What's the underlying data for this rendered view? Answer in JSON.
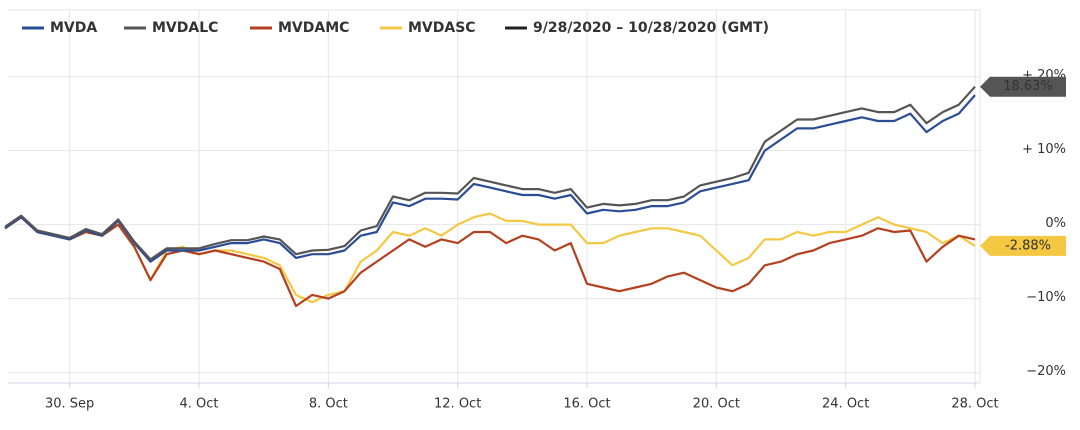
{
  "chart_data": {
    "type": "line",
    "date_range": "9/28/2020 – 10/28/2020 (GMT)",
    "categories": [
      null,
      null,
      null,
      null,
      "30. Sep",
      null,
      null,
      null,
      null,
      null,
      null,
      null,
      "4. Oct",
      null,
      null,
      null,
      null,
      null,
      null,
      null,
      "8. Oct",
      null,
      null,
      null,
      null,
      null,
      null,
      null,
      "12. Oct",
      null,
      null,
      null,
      null,
      null,
      null,
      null,
      "16. Oct",
      null,
      null,
      null,
      null,
      null,
      null,
      null,
      "20. Oct",
      null,
      null,
      null,
      null,
      null,
      null,
      null,
      "24. Oct",
      null,
      null,
      null,
      null,
      null,
      null,
      null,
      "28. Oct"
    ],
    "series": [
      {
        "name": "MVDA",
        "color": "#2a4d96",
        "values": [
          -0.5,
          1,
          -1,
          -1.5,
          -2,
          -0.8,
          -1.5,
          0.5,
          -2.5,
          -5,
          -3.5,
          -3.5,
          -3.5,
          -3,
          -2.5,
          -2.5,
          -2,
          -2.5,
          -4.5,
          -4,
          -4,
          -3.5,
          -1.5,
          -1,
          3,
          2.5,
          3.5,
          3.5,
          3.4,
          5.5,
          5,
          4.5,
          4,
          4,
          3.5,
          4,
          1.5,
          2,
          1.8,
          2,
          2.5,
          2.5,
          3,
          4.5,
          5,
          5.5,
          6,
          10,
          11.5,
          13,
          13,
          13.5,
          14,
          14.5,
          14,
          14,
          15,
          12.5,
          14,
          15,
          17.5
        ]
      },
      {
        "name": "MVDALC",
        "color": "#555555",
        "values": [
          -0.3,
          1.2,
          -0.8,
          -1.3,
          -1.8,
          -0.6,
          -1.3,
          0.7,
          -2.3,
          -4.7,
          -3.2,
          -3.2,
          -3.2,
          -2.6,
          -2.1,
          -2.1,
          -1.6,
          -2,
          -4,
          -3.5,
          -3.4,
          -2.9,
          -0.8,
          -0.2,
          3.8,
          3.3,
          4.3,
          4.3,
          4.2,
          6.3,
          5.8,
          5.3,
          4.8,
          4.8,
          4.3,
          4.8,
          2.3,
          2.8,
          2.6,
          2.8,
          3.3,
          3.3,
          3.8,
          5.3,
          5.8,
          6.3,
          7,
          11.2,
          12.7,
          14.2,
          14.2,
          14.7,
          15.2,
          15.7,
          15.2,
          15.2,
          16.2,
          13.7,
          15.2,
          16.2,
          18.63
        ],
        "value_labels": [
          null,
          null,
          null,
          null,
          null,
          null,
          null,
          null,
          null,
          null,
          null,
          null,
          null,
          null,
          null,
          null,
          null,
          null,
          null,
          null,
          null,
          null,
          null,
          null,
          null,
          null,
          null,
          null,
          null,
          null,
          null,
          null,
          null,
          null,
          null,
          null,
          null,
          null,
          null,
          null,
          null,
          null,
          null,
          null,
          null,
          null,
          null,
          null,
          null,
          null,
          null,
          null,
          null,
          null,
          null,
          null,
          null,
          null,
          null,
          null,
          "18.63%"
        ]
      },
      {
        "name": "MVDAMC",
        "color": "#b5401f",
        "values": [
          -0.5,
          1,
          -1,
          -1.5,
          -2,
          -1,
          -1.5,
          0,
          -3,
          -7.5,
          -4,
          -3.5,
          -4,
          -3.5,
          -4,
          -4.5,
          -5,
          -6,
          -11,
          -9.5,
          -10,
          -9,
          -6.5,
          -5,
          -3.5,
          -2,
          -3,
          -2,
          -2.5,
          -1,
          -1,
          -2.5,
          -1.5,
          -2,
          -3.5,
          -2.5,
          -8,
          -8.5,
          -9,
          -8.5,
          -8,
          -7,
          -6.5,
          -7.5,
          -8.5,
          -9,
          -8,
          -5.5,
          -5,
          -4,
          -3.5,
          -2.5,
          -2,
          -1.5,
          -0.5,
          -1,
          -0.8,
          -5,
          -3,
          -1.5,
          -2
        ]
      },
      {
        "name": "MVDASC",
        "color": "#f4c842",
        "values": [
          -0.5,
          1,
          -1,
          -1.5,
          -2,
          -1,
          -1.5,
          0,
          -3,
          -7.5,
          -3.5,
          -3,
          -4,
          -3.5,
          -3.5,
          -4,
          -4.5,
          -5.5,
          -9.5,
          -10.5,
          -9.5,
          -9,
          -5,
          -3.5,
          -1,
          -1.5,
          -0.5,
          -1.5,
          0,
          1,
          1.5,
          0.5,
          0.5,
          0,
          0,
          0,
          -2.5,
          -2.5,
          -1.5,
          -1,
          -0.5,
          -0.5,
          -1,
          -1.5,
          -3.5,
          -5.5,
          -4.5,
          -2,
          -2,
          -1,
          -1.5,
          -1,
          -1,
          0,
          1,
          0,
          -0.5,
          -1,
          -2.5,
          -1.5,
          -2.88
        ],
        "value_labels": [
          null,
          null,
          null,
          null,
          null,
          null,
          null,
          null,
          null,
          null,
          null,
          null,
          null,
          null,
          null,
          null,
          null,
          null,
          null,
          null,
          null,
          null,
          null,
          null,
          null,
          null,
          null,
          null,
          null,
          null,
          null,
          null,
          null,
          null,
          null,
          null,
          null,
          null,
          null,
          null,
          null,
          null,
          null,
          null,
          null,
          null,
          null,
          null,
          null,
          null,
          null,
          null,
          null,
          null,
          null,
          null,
          null,
          null,
          null,
          null,
          "-2.88%"
        ]
      }
    ],
    "ylim": [
      -21.4,
      29
    ],
    "yticks": [
      {
        "value": 20,
        "label": "+ 20%"
      },
      {
        "value": 10,
        "label": "+ 10%"
      },
      {
        "value": 0,
        "label": "0%"
      },
      {
        "value": -10,
        "label": "−10%"
      },
      {
        "value": -20,
        "label": "−20%"
      }
    ],
    "grid": true
  }
}
